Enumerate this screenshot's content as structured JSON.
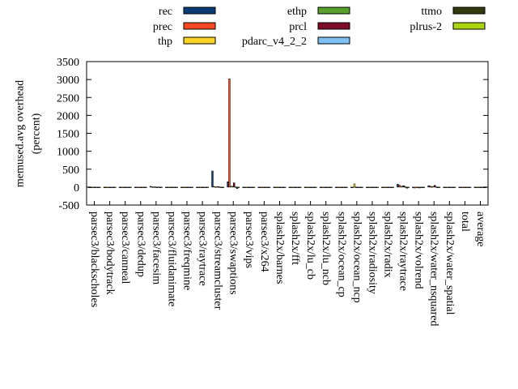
{
  "chart_data": {
    "type": "bar",
    "ylabel_lines": [
      "memused.avg overhead",
      "(percent)"
    ],
    "ylim": [
      -500,
      3500
    ],
    "yticks": [
      -500,
      0,
      500,
      1000,
      1500,
      2000,
      2500,
      3000,
      3500
    ],
    "grid": false,
    "legend_position": "top",
    "categories": [
      "parsec3/blackscholes",
      "parsec3/bodytrack",
      "parsec3/canneal",
      "parsec3/dedup",
      "parsec3/facesim",
      "parsec3/fluidanimate",
      "parsec3/freqmine",
      "parsec3/raytrace",
      "parsec3/streamcluster",
      "parsec3/swaptions",
      "parsec3/vips",
      "parsec3/x264",
      "splash2x/barnes",
      "splash2x/fft",
      "splash2x/lu_cb",
      "splash2x/lu_ncb",
      "splash2x/ocean_cp",
      "splash2x/ocean_ncp",
      "splash2x/radiosity",
      "splash2x/radix",
      "splash2x/raytrace",
      "splash2x/volrend",
      "splash2x/water_nsquared",
      "splash2x/water_spatial",
      "total",
      "average"
    ],
    "series": [
      {
        "name": "rec",
        "color": "#0b3b76",
        "values": [
          -10,
          -15,
          -10,
          -5,
          20,
          -10,
          -10,
          -5,
          450,
          150,
          -15,
          -10,
          -5,
          -5,
          -10,
          -10,
          -5,
          -5,
          -10,
          -5,
          80,
          -20,
          40,
          -5,
          -5,
          -5
        ]
      },
      {
        "name": "prec",
        "color": "#ff4a24",
        "values": [
          -15,
          -20,
          -15,
          -10,
          10,
          -10,
          -15,
          -10,
          20,
          3020,
          -20,
          -15,
          -10,
          -10,
          -15,
          -15,
          -10,
          -10,
          -15,
          -10,
          60,
          -25,
          30,
          -10,
          -10,
          -10
        ]
      },
      {
        "name": "thp",
        "color": "#ffd42a",
        "values": [
          -5,
          -5,
          -5,
          -5,
          5,
          -5,
          -5,
          -5,
          10,
          30,
          -5,
          -5,
          -5,
          -5,
          -5,
          -5,
          -5,
          90,
          -5,
          -5,
          20,
          -10,
          10,
          -5,
          -5,
          -5
        ]
      },
      {
        "name": "ethp",
        "color": "#5aa02c",
        "values": [
          -10,
          -15,
          -10,
          -5,
          10,
          -10,
          -10,
          -5,
          15,
          20,
          -15,
          -10,
          -5,
          -5,
          -10,
          -10,
          -5,
          -5,
          -10,
          -5,
          30,
          -15,
          20,
          -5,
          -5,
          -5
        ]
      },
      {
        "name": "prcl",
        "color": "#7f0a2a",
        "values": [
          -15,
          -20,
          -15,
          -10,
          -10,
          -10,
          -15,
          -10,
          10,
          120,
          -20,
          -15,
          -10,
          -10,
          -15,
          -15,
          -10,
          -10,
          -15,
          -10,
          40,
          -25,
          50,
          -10,
          -10,
          -10
        ]
      },
      {
        "name": "pdarc_v4_2_2",
        "color": "#7fc1f5",
        "values": [
          -5,
          -5,
          -5,
          -5,
          5,
          -5,
          -5,
          -5,
          5,
          10,
          -5,
          -5,
          -5,
          -5,
          -5,
          -5,
          -5,
          -5,
          -5,
          -5,
          10,
          -5,
          10,
          -5,
          -5,
          -5
        ]
      },
      {
        "name": "ttmo",
        "color": "#333a0e",
        "values": [
          -10,
          -10,
          -10,
          -10,
          -20,
          -10,
          -10,
          -10,
          -20,
          -40,
          -10,
          -10,
          -10,
          -10,
          -20,
          -20,
          -10,
          -10,
          -10,
          -10,
          -30,
          -20,
          -20,
          -10,
          -10,
          -10
        ]
      },
      {
        "name": "plrus-2",
        "color": "#a8d510",
        "values": [
          -5,
          -5,
          -5,
          -5,
          -5,
          -5,
          -5,
          -5,
          -5,
          -10,
          -5,
          -5,
          -5,
          -5,
          -5,
          -5,
          -5,
          -5,
          -5,
          -5,
          -5,
          -5,
          -5,
          -5,
          -5,
          -5
        ]
      }
    ]
  }
}
